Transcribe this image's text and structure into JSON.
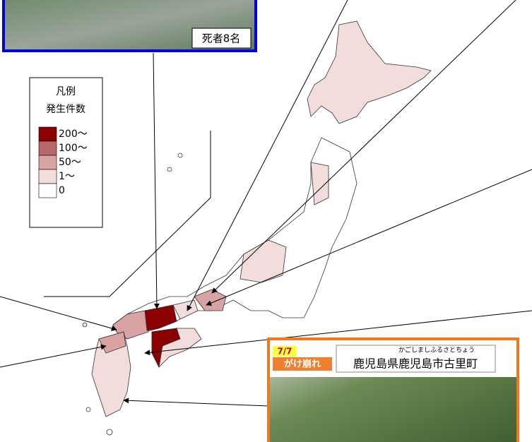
{
  "photo_top": {
    "caption": "死者8名"
  },
  "legend": {
    "title": "凡例",
    "subtitle": "発生件数",
    "items": [
      {
        "label": "200～",
        "color": "#8b0000"
      },
      {
        "label": "100～",
        "color": "#b86868"
      },
      {
        "label": "50～",
        "color": "#d9a3a3"
      },
      {
        "label": "1～",
        "color": "#f2dcdc"
      },
      {
        "label": "0",
        "color": "#ffffff"
      }
    ]
  },
  "photo_bottom": {
    "date": "7/7",
    "type": "がけ崩れ",
    "reading": "かごしましふるさとちょう",
    "place": "鹿児島県鹿児島市古里町"
  }
}
